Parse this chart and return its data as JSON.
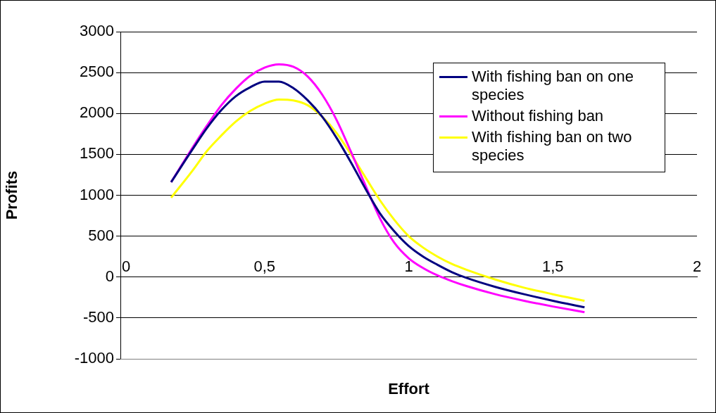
{
  "chart_data": {
    "type": "line",
    "xlabel": "Effort",
    "ylabel": "Profits",
    "x": [
      0.176,
      0.25,
      0.3,
      0.35,
      0.4,
      0.45,
      0.5,
      0.55,
      0.6,
      0.65,
      0.7,
      0.75,
      0.8,
      0.85,
      0.9,
      0.95,
      1.0,
      1.05,
      1.1,
      1.15,
      1.2,
      1.3,
      1.4,
      1.5,
      1.61
    ],
    "series": [
      {
        "name": "With fishing ban on one species",
        "color": "#000080",
        "values": [
          1160,
          1560,
          1820,
          2040,
          2210,
          2320,
          2390,
          2390,
          2310,
          2160,
          1960,
          1700,
          1400,
          1080,
          780,
          560,
          380,
          250,
          150,
          60,
          -10,
          -120,
          -210,
          -290,
          -370
        ]
      },
      {
        "name": "Without fishing ban",
        "color": "#ff00ff",
        "values": [
          1160,
          1580,
          1850,
          2100,
          2300,
          2460,
          2560,
          2600,
          2570,
          2450,
          2230,
          1920,
          1530,
          1120,
          720,
          420,
          230,
          110,
          20,
          -50,
          -110,
          -210,
          -290,
          -360,
          -430
        ]
      },
      {
        "name": "With fishing ban on two species",
        "color": "#ffff00",
        "values": [
          970,
          1300,
          1540,
          1730,
          1900,
          2030,
          2120,
          2170,
          2160,
          2100,
          1960,
          1760,
          1500,
          1220,
          940,
          700,
          500,
          360,
          250,
          160,
          90,
          -30,
          -130,
          -210,
          -290
        ]
      }
    ],
    "xlim": [
      0,
      2
    ],
    "xticks": [
      0,
      {
        "value": 0.5,
        "label": "0,5"
      },
      1,
      {
        "value": 1.5,
        "label": "1,5"
      },
      2
    ],
    "ylim": [
      -1000,
      3000
    ],
    "yticks": [
      -1000,
      -500,
      0,
      500,
      1000,
      1500,
      2000,
      2500,
      3000
    ],
    "grid": "y",
    "legend": "right",
    "marker": "none",
    "line_style": "solid"
  }
}
